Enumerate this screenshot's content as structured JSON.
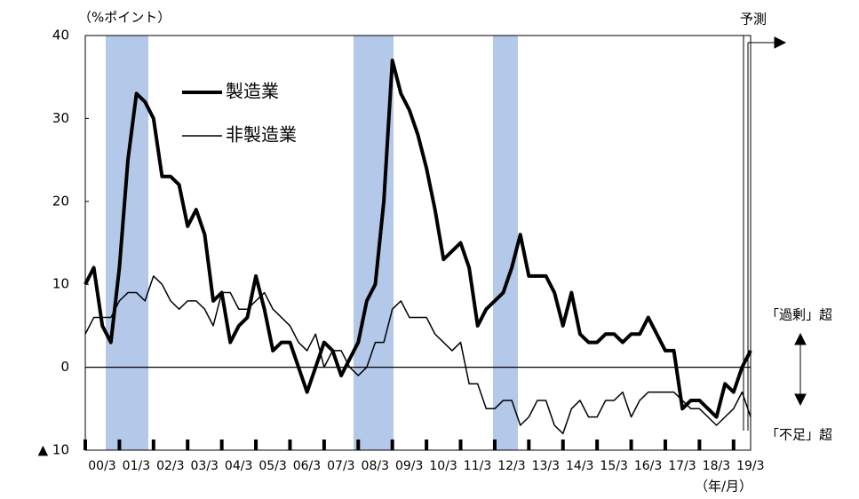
{
  "chart_data": {
    "type": "line",
    "y_unit": "（%ポイント）",
    "x_unit": "（年/月）",
    "forecast_label": "予測",
    "annotations": [
      "「過剰」超",
      "「不足」超"
    ],
    "categories": [
      "00/3",
      null,
      null,
      null,
      "01/3",
      null,
      null,
      null,
      "02/3",
      null,
      null,
      null,
      "03/3",
      null,
      null,
      null,
      "04/3",
      null,
      null,
      null,
      "05/3",
      null,
      null,
      null,
      "06/3",
      null,
      null,
      null,
      "07/3",
      null,
      null,
      null,
      "08/3",
      null,
      null,
      null,
      "09/3",
      null,
      null,
      null,
      "10/3",
      null,
      null,
      null,
      "11/3",
      null,
      null,
      null,
      "12/3",
      null,
      null,
      null,
      "13/3",
      null,
      null,
      null,
      "14/3",
      null,
      null,
      null,
      "15/3",
      null,
      null,
      null,
      "16/3",
      null,
      null,
      null,
      "17/3",
      null,
      null,
      null,
      "18/3",
      null,
      null,
      null,
      "19/3",
      null,
      null
    ],
    "series": [
      {
        "name": "製造業",
        "color": "#000000",
        "width": 4,
        "values": [
          10,
          12,
          5,
          3,
          12,
          25,
          33,
          32,
          30,
          23,
          23,
          22,
          17,
          19,
          16,
          8,
          9,
          3,
          5,
          6,
          11,
          7,
          2,
          3,
          3,
          0,
          -3,
          0,
          3,
          2,
          -1,
          1,
          3,
          8,
          10,
          20,
          37,
          33,
          31,
          28,
          24,
          19,
          13,
          14,
          15,
          12,
          5,
          7,
          8,
          9,
          12,
          16,
          11,
          11,
          11,
          9,
          5,
          9,
          4,
          3,
          3,
          4,
          4,
          3,
          4,
          4,
          6,
          4,
          2,
          2,
          -5,
          -4,
          -4,
          -5,
          -6,
          -2,
          -3,
          0,
          2
        ]
      },
      {
        "name": "非製造業",
        "color": "#000000",
        "width": 1.5,
        "values": [
          4,
          6,
          6,
          6,
          8,
          9,
          9,
          8,
          11,
          10,
          8,
          7,
          8,
          8,
          7,
          5,
          9,
          9,
          7,
          7,
          8,
          9,
          7,
          6,
          5,
          3,
          2,
          4,
          0,
          2,
          2,
          0,
          -1,
          0,
          3,
          3,
          7,
          8,
          6,
          6,
          6,
          4,
          3,
          2,
          3,
          -2,
          -2,
          -5,
          -5,
          -4,
          -4,
          -7,
          -6,
          -4,
          -4,
          -7,
          -8,
          -5,
          -4,
          -6,
          -6,
          -4,
          -4,
          -3,
          -6,
          -4,
          -3,
          -3,
          -3,
          -3,
          -4,
          -5,
          -5,
          -6,
          -7,
          -6,
          -5,
          -3,
          -6
        ]
      }
    ],
    "ylim": [
      -10,
      40
    ],
    "yticks": [
      {
        "value": -10,
        "label": "▲ 10"
      },
      0,
      10,
      20,
      30,
      40
    ],
    "grid": false
  }
}
